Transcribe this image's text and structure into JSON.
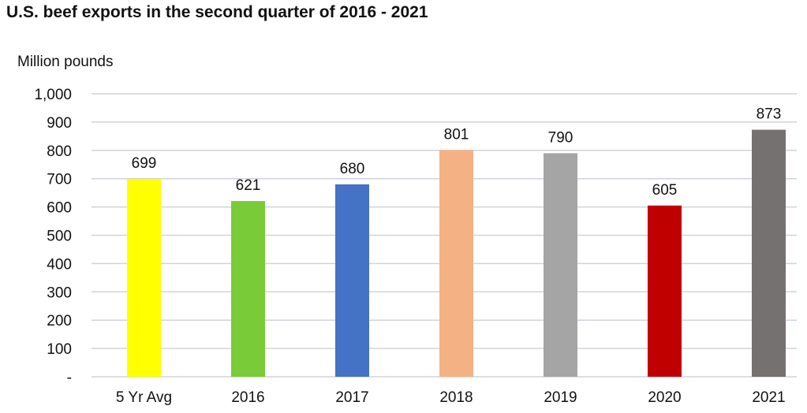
{
  "chart_data": {
    "type": "bar",
    "title": "U.S. beef exports in the second quarter of 2016 - 2021",
    "ylabel": "Million pounds",
    "xlabel": "",
    "ylim": [
      0,
      1000
    ],
    "yticks": [
      0,
      100,
      200,
      300,
      400,
      500,
      600,
      700,
      800,
      900,
      1000
    ],
    "ytick_labels": [
      "-",
      "100",
      "200",
      "300",
      "400",
      "500",
      "600",
      "700",
      "800",
      "900",
      "1,000"
    ],
    "grid": true,
    "categories": [
      "5 Yr Avg",
      "2016",
      "2017",
      "2018",
      "2019",
      "2020",
      "2021"
    ],
    "values": [
      699,
      621,
      680,
      801,
      790,
      605,
      873
    ],
    "colors": [
      "#ffff00",
      "#7acb38",
      "#4472c4",
      "#f4b183",
      "#a5a5a5",
      "#c00000",
      "#767171"
    ],
    "data_labels": true
  }
}
